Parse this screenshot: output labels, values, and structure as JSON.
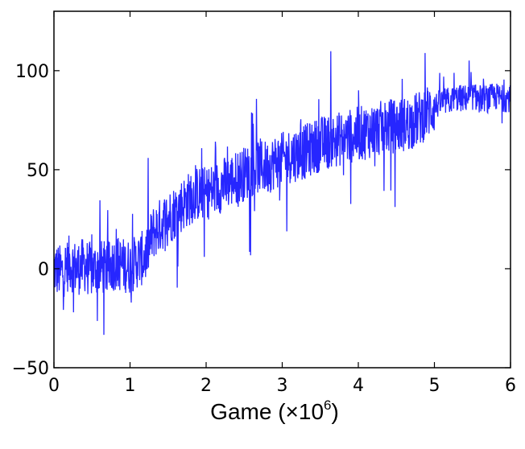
{
  "chart_data": {
    "type": "line",
    "title": "",
    "ylabel": "",
    "xlabel": {
      "text": "Game (×10",
      "exponent": "6",
      "suffix": ")"
    },
    "xlim": [
      0,
      6
    ],
    "ylim": [
      -50,
      130
    ],
    "x_ticks": [
      0,
      1,
      2,
      3,
      4,
      5,
      6
    ],
    "y_ticks": [
      -50,
      0,
      50,
      100
    ],
    "grid": false,
    "legend": "none",
    "series": [
      {
        "color": "#0000ff",
        "x": [
          0,
          0.1,
          0.2,
          0.3,
          0.4,
          0.5,
          0.6,
          0.7,
          0.8,
          0.9,
          1.0,
          1.1,
          1.2,
          1.3,
          1.4,
          1.5,
          1.6,
          1.7,
          1.8,
          1.9,
          2.0,
          2.1,
          2.2,
          2.3,
          2.4,
          2.5,
          2.6,
          2.7,
          2.8,
          2.9,
          3.0,
          3.1,
          3.2,
          3.3,
          3.4,
          3.5,
          3.6,
          3.7,
          3.8,
          3.9,
          4.0,
          4.1,
          4.2,
          4.3,
          4.4,
          4.5,
          4.6,
          4.7,
          4.8,
          4.9,
          5.0,
          5.1,
          5.2,
          5.3,
          5.4,
          5.5,
          5.6,
          5.7,
          5.8,
          5.9,
          6.0
        ],
        "y": [
          0,
          -2,
          3,
          0,
          2,
          -1,
          1,
          0,
          3,
          2,
          1,
          4,
          6,
          18,
          22,
          26,
          29,
          33,
          36,
          38,
          38,
          40,
          42,
          44,
          46,
          48,
          50,
          52,
          51,
          54,
          55,
          57,
          58,
          59,
          61,
          63,
          64,
          65,
          66,
          67,
          68,
          69,
          70,
          71,
          72,
          72,
          73,
          74,
          76,
          79,
          82,
          84,
          85,
          86,
          86,
          87,
          86,
          86,
          87,
          86,
          86
        ]
      }
    ]
  }
}
